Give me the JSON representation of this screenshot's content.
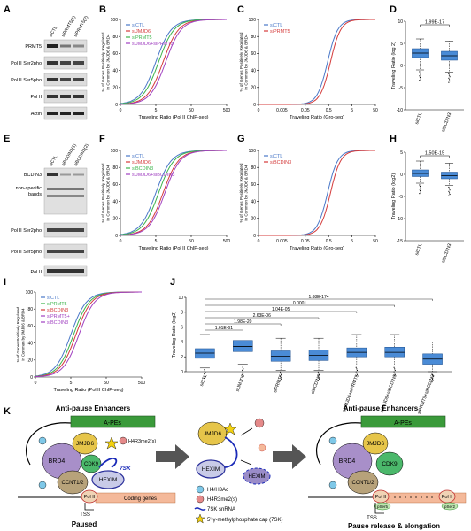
{
  "panels": {
    "A": {
      "letter": "A",
      "lanes": [
        "siCTL",
        "siPRMT5(1)",
        "siPRMT5(2)"
      ],
      "bands": [
        "PRMT5",
        "Pol II Ser2pho",
        "Pol II Ser5pho",
        "Pol II",
        "Actin"
      ]
    },
    "B": {
      "letter": "B",
      "ylabel": "% of Genes Positively Regulated in Common by JMJD6 & BRD4",
      "xlabel": "Traveling Ratio (Pol II ChIP-seq)",
      "legend": [
        "siCTL",
        "siJMJD6",
        "siPRMT5",
        "siJMJD6+siPRMT5"
      ]
    },
    "C": {
      "letter": "C",
      "ylabel": "% of Genes Positively Regulated in Common by JMJD6 & BRD4",
      "xlabel": "Traveling Ratio (Gro-seq)",
      "legend": [
        "siCTL",
        "siPRMT5"
      ]
    },
    "D": {
      "letter": "D",
      "pvalue": "1.99E-17",
      "ylabel": "Traveling Ratio (log 2)",
      "categories": [
        "siCTL",
        "siBCDIN3"
      ]
    },
    "E": {
      "letter": "E",
      "lanes": [
        "siCTL",
        "siBCDIN3(1)",
        "siBCDIN3(2)"
      ],
      "band_top": "BCDIN3",
      "band_ns": "non-specific bands",
      "band_ns_1": "non-specific",
      "band_ns_2": "bands",
      "bands": [
        "Pol II Ser2pho",
        "Pol II Ser5pho",
        "Pol II"
      ]
    },
    "F": {
      "letter": "F",
      "ylabel": "% of Genes Positively Regulated in Common by JMJD6 & BRD4",
      "xlabel": "Traveling Ratio (Pol II ChIP-seq)",
      "legend": [
        "siCTL",
        "siJMJD6",
        "siBCDIN3",
        "siJMJD6+siBCDIN3"
      ]
    },
    "G": {
      "letter": "G",
      "ylabel": "% of Genes Positively Regulated in Common by JMJD6 & BRD4",
      "xlabel": "Traveling Ratio (Gro-seq)",
      "legend": [
        "siCTL",
        "siBCDIN3"
      ]
    },
    "H": {
      "letter": "H",
      "pvalue": "1.50E-15",
      "ylabel": "Traveling Ratio (log2)",
      "categories": [
        "siCTL",
        "siBCDIN3"
      ]
    },
    "I": {
      "letter": "I",
      "ylabel": "% of Genes Positively Regulated in Common by JMJD6 & BRD4",
      "xlabel": "Traveling Ratio (Pol II ChIP-seq)",
      "legend": [
        "siCTL",
        "siPRMT5",
        "siBCDIN3",
        "siPRMT5+",
        "siBCDIN3"
      ]
    },
    "J": {
      "letter": "J",
      "ylabel": "Traveling Ratio (log2)",
      "categories": [
        "siCTL",
        "siJMJD6",
        "siPRMT5",
        "siBCDIN3",
        "siJMJD6+siPRMT5",
        "siJMJD6+siBCDIN3",
        "siPRMT5+siBCDIN3"
      ],
      "pvalues": [
        "1.68E-174",
        "0.0001",
        "1.04E-05",
        "2.63E-06",
        "1.98E-20",
        "1.61E-61"
      ]
    },
    "K": {
      "letter": "K",
      "title_left": "Anti-pause Enhancers",
      "title_right": "Anti-pause Enhancers",
      "ape": "A-PEs",
      "jmjd6": "JMJD6",
      "brd4": "BRD4",
      "cdk9": "CDK9",
      "ccnt": "CCNT1/2",
      "hexim": "HEXIM",
      "sk7": "7SK",
      "h4r3": "H4R3me2(s)",
      "polii": "Pol II",
      "coding": "Coding genes",
      "tss": "TSS",
      "paused": "Paused",
      "release": "Pause release & elongation",
      "ser2p": "pSer2",
      "ser5p": "pSer5",
      "legend": [
        "H4/H3Ac",
        "H4R3me2(s)",
        "7SK snRNA",
        "5'-γ-methylphosphate cap (7SK)"
      ]
    }
  },
  "chart_data": [
    {
      "type": "line",
      "id": "B",
      "xlabel": "Traveling Ratio (Pol II ChIP-seq)",
      "ylabel": "% of Genes Positively Regulated in Common by JMJD6 & BRD4",
      "xscale": "log",
      "xlim": [
        0,
        500
      ],
      "ylim": [
        0,
        100
      ],
      "xticks": [
        0,
        5,
        50,
        500
      ],
      "yticks": [
        0,
        20,
        40,
        60,
        80,
        100
      ],
      "series": [
        {
          "name": "siCTL",
          "color": "#4a78c8",
          "mid": 5.0
        },
        {
          "name": "siJMJD6",
          "color": "#d43a3a",
          "mid": 8.0
        },
        {
          "name": "siPRMT5",
          "color": "#3cb44b",
          "mid": 6.0
        },
        {
          "name": "siJMJD6+siPRMT5",
          "color": "#a040c0",
          "mid": 9.5
        }
      ]
    },
    {
      "type": "line",
      "id": "C",
      "xlabel": "Traveling Ratio (Gro-seq)",
      "ylabel": "% of Genes Positively Regulated in Common by JMJD6 & BRD4",
      "xscale": "log",
      "xlim": [
        0,
        50
      ],
      "ylim": [
        0,
        100
      ],
      "xticks": [
        0,
        0.005,
        0.05,
        0.5,
        5,
        50
      ],
      "yticks": [
        0,
        20,
        40,
        60,
        80,
        100
      ],
      "series": [
        {
          "name": "siCTL",
          "color": "#4a78c8",
          "mid": 0.45
        },
        {
          "name": "siPRMT5",
          "color": "#d43a3a",
          "mid": 0.6
        }
      ]
    },
    {
      "type": "box",
      "id": "D",
      "ylabel": "Traveling Ratio (log 2)",
      "categories": [
        "siCTL",
        "siBCDIN3"
      ],
      "ylim": [
        -10,
        10
      ],
      "yticks": [
        -10,
        -5,
        0,
        5,
        10
      ],
      "boxes": [
        {
          "q1": 1.8,
          "median": 2.8,
          "q3": 3.8,
          "wlo": -1,
          "whi": 6
        },
        {
          "q1": 1.2,
          "median": 2.2,
          "q3": 3.2,
          "wlo": -1.5,
          "whi": 5.5
        }
      ]
    },
    {
      "type": "line",
      "id": "F",
      "xlabel": "Traveling Ratio (Pol II ChIP-seq)",
      "ylabel": "% of Genes Positively Regulated in Common by JMJD6 & BRD4",
      "xscale": "log",
      "xlim": [
        0,
        500
      ],
      "ylim": [
        0,
        100
      ],
      "xticks": [
        0,
        5,
        50,
        500
      ],
      "yticks": [
        0,
        20,
        40,
        60,
        80,
        100
      ],
      "series": [
        {
          "name": "siCTL",
          "color": "#4a78c8",
          "mid": 5.0
        },
        {
          "name": "siJMJD6",
          "color": "#d43a3a",
          "mid": 8.0
        },
        {
          "name": "siBCDIN3",
          "color": "#3cb44b",
          "mid": 6.0
        },
        {
          "name": "siJMJD6+siBCDIN3",
          "color": "#a040c0",
          "mid": 9.0
        }
      ]
    },
    {
      "type": "line",
      "id": "G",
      "xlabel": "Traveling Ratio (Gro-seq)",
      "ylabel": "% of Genes Positively Regulated in Common by JMJD6 & BRD4",
      "xscale": "log",
      "xlim": [
        0,
        50
      ],
      "ylim": [
        0,
        100
      ],
      "xticks": [
        0,
        0.005,
        0.05,
        0.5,
        5,
        50
      ],
      "yticks": [
        0,
        20,
        40,
        60,
        80,
        100
      ],
      "series": [
        {
          "name": "siCTL",
          "color": "#4a78c8",
          "mid": 0.45
        },
        {
          "name": "siBCDIN3",
          "color": "#d43a3a",
          "mid": 0.6
        }
      ]
    },
    {
      "type": "box",
      "id": "H",
      "ylabel": "Traveling Ratio (log2)",
      "categories": [
        "siCTL",
        "siBCDIN3"
      ],
      "ylim": [
        -15,
        5
      ],
      "yticks": [
        -15,
        -10,
        -5,
        0,
        5
      ],
      "boxes": [
        {
          "q1": -0.5,
          "median": 0.2,
          "q3": 1.0,
          "wlo": -2,
          "whi": 3
        },
        {
          "q1": -1.0,
          "median": -0.3,
          "q3": 0.5,
          "wlo": -2.5,
          "whi": 2.5
        }
      ]
    },
    {
      "type": "line",
      "id": "I",
      "xlabel": "Traveling Ratio (Pol II ChIP-seq)",
      "ylabel": "% of Genes Positively Regulated in Common by JMJD6 & BRD4",
      "xscale": "log",
      "xlim": [
        0,
        500
      ],
      "ylim": [
        0,
        100
      ],
      "xticks": [
        0,
        5,
        50,
        500
      ],
      "yticks": [
        0,
        20,
        40,
        60,
        80,
        100
      ],
      "series": [
        {
          "name": "siCTL",
          "color": "#4a78c8",
          "mid": 5.0
        },
        {
          "name": "siPRMT5",
          "color": "#3cb44b",
          "mid": 6.0
        },
        {
          "name": "siBCDIN3",
          "color": "#d43a3a",
          "mid": 7.0
        },
        {
          "name": "siPRMT5+siBCDIN3",
          "color": "#a040c0",
          "mid": 8.5
        }
      ]
    },
    {
      "type": "box",
      "id": "J",
      "ylabel": "Traveling Ratio (log2)",
      "categories": [
        "siCTL",
        "siJMJD6",
        "siPRMT5",
        "siBCDIN3",
        "siJMJD6+siPRMT5",
        "siJMJD6+siBCDIN3",
        "siPRMT5+siBCDIN3"
      ],
      "ylim": [
        0,
        10
      ],
      "yticks": [
        0,
        2,
        4,
        6,
        8,
        10
      ],
      "boxes": [
        {
          "q1": 1.8,
          "median": 2.5,
          "q3": 3.1,
          "wlo": 0.5,
          "whi": 5
        },
        {
          "q1": 2.7,
          "median": 3.4,
          "q3": 4.2,
          "wlo": 1,
          "whi": 6
        },
        {
          "q1": 1.4,
          "median": 2.1,
          "q3": 2.8,
          "wlo": 0.2,
          "whi": 4.5
        },
        {
          "q1": 1.5,
          "median": 2.2,
          "q3": 2.9,
          "wlo": 0.2,
          "whi": 4.5
        },
        {
          "q1": 2.0,
          "median": 2.6,
          "q3": 3.2,
          "wlo": 0.8,
          "whi": 5
        },
        {
          "q1": 2.0,
          "median": 2.6,
          "q3": 3.3,
          "wlo": 0.8,
          "whi": 5
        },
        {
          "q1": 1.0,
          "median": 1.7,
          "q3": 2.4,
          "wlo": 0,
          "whi": 4
        }
      ]
    }
  ]
}
